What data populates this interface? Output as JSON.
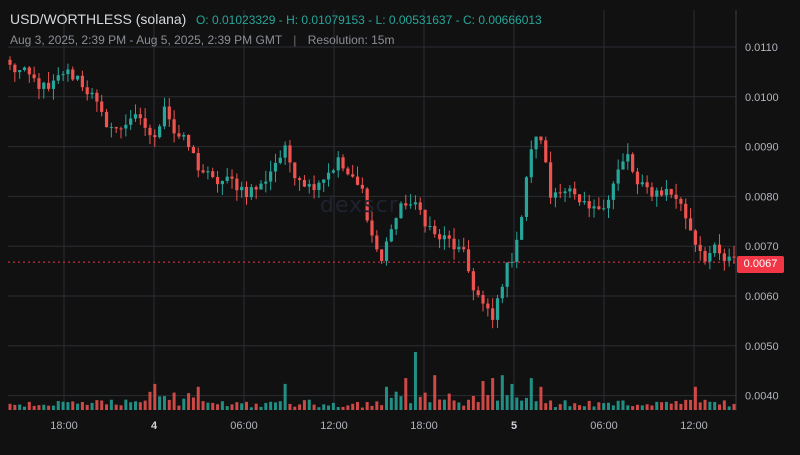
{
  "header": {
    "pair": "USD/WORTHLESS (solana)",
    "o_label": "O:",
    "o_value": "0.01023329",
    "h_label": "H:",
    "h_value": "0.01079153",
    "l_label": "L:",
    "l_value": "0.00531637",
    "c_label": "C:",
    "c_value": "0.00666013",
    "range": "Aug 3, 2025, 2:39 PM - Aug 5, 2025, 2:39 PM GMT",
    "separator": "|",
    "resolution": "Resolution: 15m"
  },
  "watermark": "dexscr",
  "chart_data": {
    "type": "candlestick",
    "price_axis": {
      "ticks": [
        "0.0110",
        "0.0100",
        "0.0090",
        "0.0080",
        "0.0070",
        "0.0060",
        "0.0050",
        "0.0040"
      ],
      "range": [
        0.0037,
        0.0117
      ]
    },
    "time_axis": {
      "labels": [
        "18:00",
        "4",
        "06:00",
        "12:00",
        "18:00",
        "5",
        "06:00",
        "12:00"
      ],
      "bold": [
        "4",
        "5"
      ]
    },
    "last_price": "0.0067",
    "colors": {
      "up": "#26a69a",
      "down": "#ef5350",
      "grid": "#2a2d33",
      "text": "#b2b5be",
      "last": "#f23645"
    },
    "path": [
      [
        0,
        0.0106
      ],
      [
        4,
        0.0104
      ],
      [
        8,
        0.0101
      ],
      [
        11,
        0.0105
      ],
      [
        14,
        0.0104
      ],
      [
        17,
        0.01
      ],
      [
        19,
        0.0096
      ],
      [
        22,
        0.0093
      ],
      [
        25,
        0.0096
      ],
      [
        28,
        0.0094
      ],
      [
        30,
        0.0091
      ],
      [
        32,
        0.0099
      ],
      [
        34,
        0.0093
      ],
      [
        37,
        0.009
      ],
      [
        39,
        0.0086
      ],
      [
        42,
        0.0083
      ],
      [
        46,
        0.0083
      ],
      [
        49,
        0.0081
      ],
      [
        52,
        0.0082
      ],
      [
        55,
        0.0087
      ],
      [
        57,
        0.0089
      ],
      [
        59,
        0.0085
      ],
      [
        62,
        0.0082
      ],
      [
        65,
        0.0084
      ],
      [
        68,
        0.0087
      ],
      [
        71,
        0.0083
      ],
      [
        73,
        0.0081
      ],
      [
        75,
        0.0072
      ],
      [
        77,
        0.0067
      ],
      [
        79,
        0.0074
      ],
      [
        82,
        0.0079
      ],
      [
        85,
        0.0077
      ],
      [
        88,
        0.0072
      ],
      [
        91,
        0.0071
      ],
      [
        94,
        0.0068
      ],
      [
        96,
        0.0062
      ],
      [
        98,
        0.0058
      ],
      [
        100,
        0.0055
      ],
      [
        102,
        0.0063
      ],
      [
        104,
        0.0068
      ],
      [
        106,
        0.0076
      ],
      [
        108,
        0.009
      ],
      [
        110,
        0.0092
      ],
      [
        112,
        0.008
      ],
      [
        114,
        0.0082
      ],
      [
        116,
        0.0081
      ],
      [
        118,
        0.0078
      ],
      [
        121,
        0.0077
      ],
      [
        124,
        0.008
      ],
      [
        126,
        0.0085
      ],
      [
        128,
        0.0088
      ],
      [
        130,
        0.0082
      ],
      [
        133,
        0.0081
      ],
      [
        136,
        0.0081
      ],
      [
        138,
        0.008
      ],
      [
        140,
        0.0076
      ],
      [
        142,
        0.0071
      ],
      [
        144,
        0.0068
      ],
      [
        146,
        0.0069
      ],
      [
        148,
        0.0067
      ],
      [
        150,
        0.0067
      ]
    ],
    "candle_count": 151,
    "volume": {
      "max": 100,
      "spikes": [
        [
          30,
          45
        ],
        [
          34,
          30
        ],
        [
          39,
          40
        ],
        [
          57,
          45
        ],
        [
          78,
          40
        ],
        [
          82,
          55
        ],
        [
          84,
          100
        ],
        [
          88,
          60
        ],
        [
          98,
          50
        ],
        [
          100,
          55
        ],
        [
          102,
          60
        ],
        [
          104,
          45
        ],
        [
          108,
          55
        ],
        [
          110,
          40
        ],
        [
          142,
          40
        ]
      ]
    }
  }
}
